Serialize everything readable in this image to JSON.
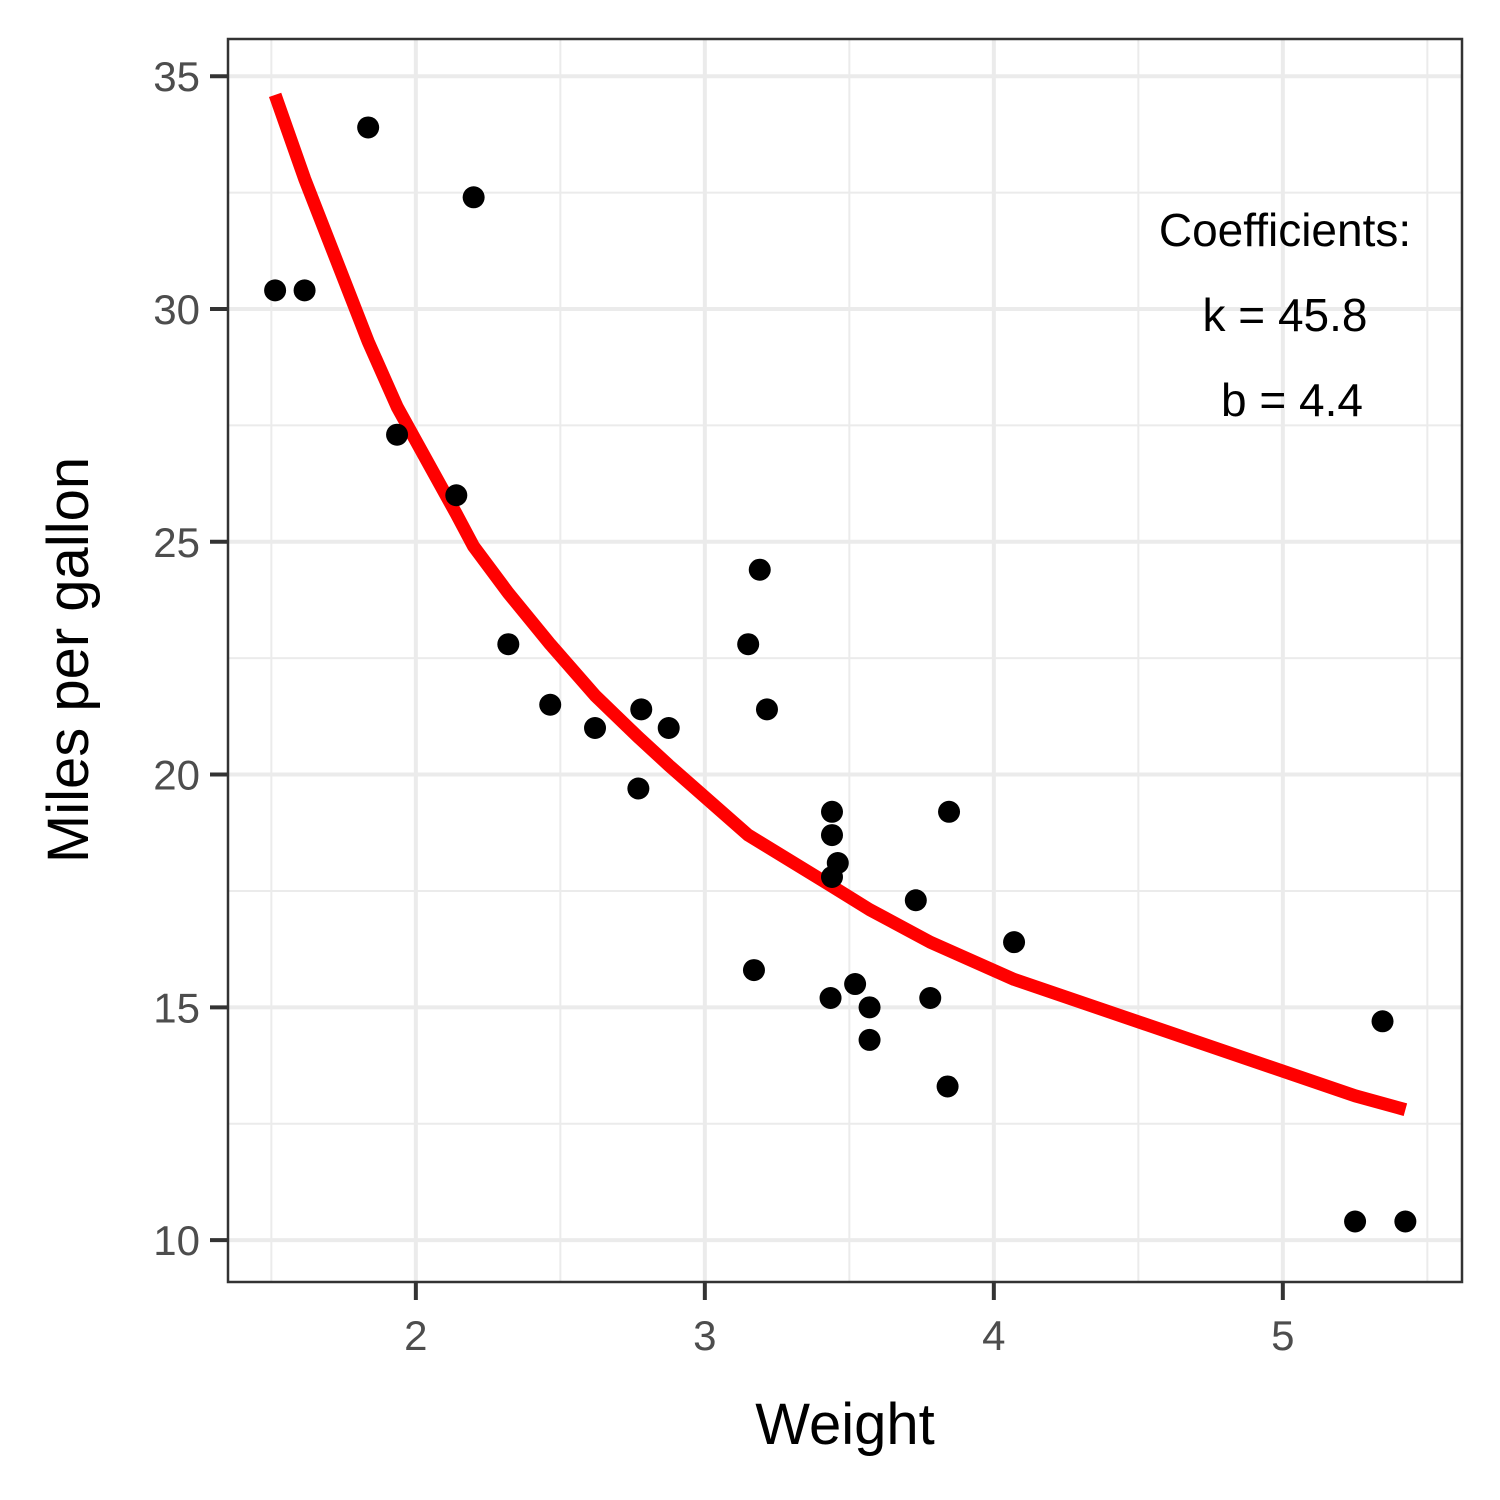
{
  "chart_data": {
    "type": "scatter",
    "title": "",
    "xlabel": "Weight",
    "ylabel": "Miles per gallon",
    "xlim": [
      1.35,
      5.62
    ],
    "ylim": [
      9.1,
      35.8
    ],
    "x_ticks": [
      2,
      3,
      4,
      5
    ],
    "y_ticks": [
      10,
      15,
      20,
      25,
      30,
      35
    ],
    "grid": true,
    "points": [
      {
        "x": 2.62,
        "y": 21.0
      },
      {
        "x": 2.875,
        "y": 21.0
      },
      {
        "x": 2.32,
        "y": 22.8
      },
      {
        "x": 3.215,
        "y": 21.4
      },
      {
        "x": 3.44,
        "y": 18.7
      },
      {
        "x": 3.46,
        "y": 18.1
      },
      {
        "x": 3.57,
        "y": 14.3
      },
      {
        "x": 3.19,
        "y": 24.4
      },
      {
        "x": 3.15,
        "y": 22.8
      },
      {
        "x": 3.44,
        "y": 19.2
      },
      {
        "x": 3.44,
        "y": 17.8
      },
      {
        "x": 4.07,
        "y": 16.4
      },
      {
        "x": 3.73,
        "y": 17.3
      },
      {
        "x": 3.78,
        "y": 15.2
      },
      {
        "x": 5.25,
        "y": 10.4
      },
      {
        "x": 5.424,
        "y": 10.4
      },
      {
        "x": 5.345,
        "y": 14.7
      },
      {
        "x": 2.2,
        "y": 32.4
      },
      {
        "x": 1.615,
        "y": 30.4
      },
      {
        "x": 1.835,
        "y": 33.9
      },
      {
        "x": 2.465,
        "y": 21.5
      },
      {
        "x": 3.52,
        "y": 15.5
      },
      {
        "x": 3.435,
        "y": 15.2
      },
      {
        "x": 3.84,
        "y": 13.3
      },
      {
        "x": 3.845,
        "y": 19.2
      },
      {
        "x": 1.935,
        "y": 27.3
      },
      {
        "x": 2.14,
        "y": 26.0
      },
      {
        "x": 1.513,
        "y": 30.4
      },
      {
        "x": 3.17,
        "y": 15.8
      },
      {
        "x": 2.77,
        "y": 19.7
      },
      {
        "x": 3.57,
        "y": 15.0
      },
      {
        "x": 2.78,
        "y": 21.4
      }
    ],
    "fit_curve": {
      "color": "#ff0000",
      "x": [
        1.513,
        1.615,
        1.835,
        1.935,
        2.14,
        2.2,
        2.32,
        2.465,
        2.62,
        2.77,
        2.875,
        3.15,
        3.44,
        3.57,
        3.78,
        4.07,
        5.25,
        5.424
      ],
      "y": [
        34.6,
        32.8,
        29.3,
        27.9,
        25.6,
        24.9,
        23.9,
        22.8,
        21.7,
        20.8,
        20.2,
        18.7,
        17.6,
        17.1,
        16.4,
        15.6,
        13.1,
        12.8
      ]
    },
    "annotation": {
      "lines": [
        "Coefficients:",
        "k = 45.8",
        "b = 4.4"
      ]
    },
    "colors": {
      "point": "#000000",
      "panel_border": "#333333",
      "grid": "#ebebeb",
      "tick_text": "#4d4d4d"
    }
  }
}
